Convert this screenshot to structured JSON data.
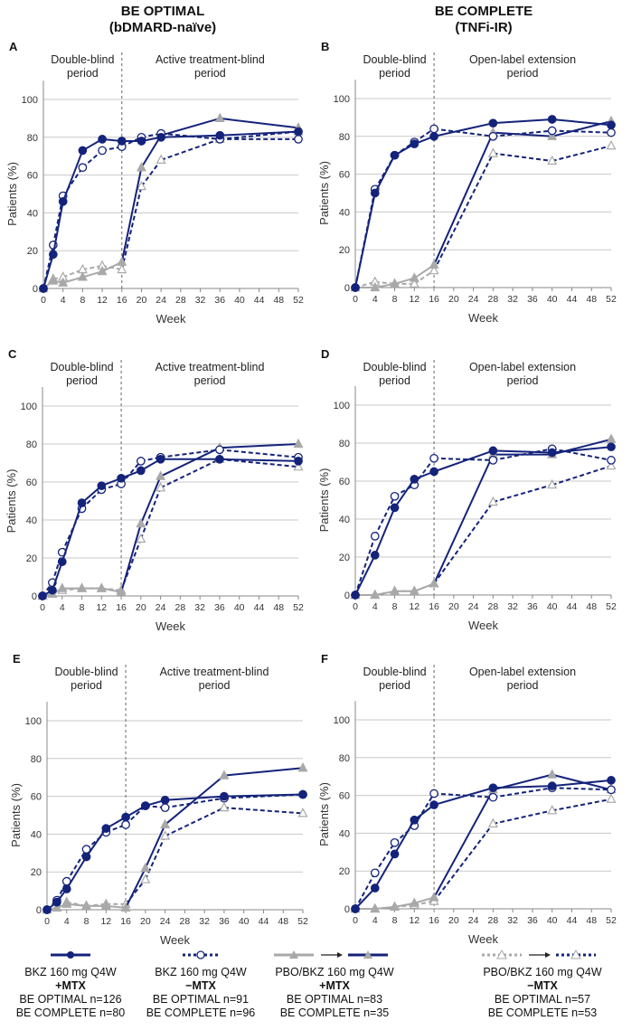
{
  "headers": [
    {
      "title": "BE OPTIMAL",
      "subtitle": "(bDMARD-naïve)"
    },
    {
      "title": "BE COMPLETE",
      "subtitle": "(TNFi-IR)"
    }
  ],
  "colors": {
    "bkz": "#14237a",
    "placebo": "#a9a9a9",
    "grid": "#c8c8c8"
  },
  "chart_data": [
    {
      "type": "line",
      "panel": "A",
      "study": "BE OPTIMAL",
      "xlabel": "Week",
      "ylabel": "Patients (%)",
      "ylim": [
        0,
        110
      ],
      "yticks": [
        0,
        20,
        40,
        60,
        80,
        100
      ],
      "xticks": [
        0,
        4,
        8,
        12,
        16,
        20,
        24,
        28,
        32,
        36,
        40,
        44,
        48,
        52
      ],
      "switch_week": 16,
      "period_labels": [
        [
          "Double-blind",
          "period"
        ],
        [
          "Active treatment-blind",
          "period"
        ]
      ],
      "x": [
        0,
        2,
        4,
        8,
        12,
        16,
        20,
        24,
        36,
        52
      ],
      "series": [
        {
          "name": "BKZ 160 mg Q4W +MTX",
          "values": [
            0,
            18,
            46,
            73,
            79,
            78,
            78,
            80,
            81,
            83
          ]
        },
        {
          "name": "BKZ 160 mg Q4W −MTX",
          "values": [
            0,
            23,
            49,
            64,
            73,
            75,
            80,
            82,
            79,
            79
          ]
        },
        {
          "name": "PBO/BKZ 160 mg Q4W +MTX",
          "values": [
            0,
            4,
            3,
            6,
            9,
            14,
            64,
            81,
            90,
            85
          ]
        },
        {
          "name": "PBO/BKZ 160 mg Q4W −MTX",
          "values": [
            0,
            5,
            6,
            10,
            12,
            10,
            54,
            68,
            79,
            83
          ]
        }
      ]
    },
    {
      "type": "line",
      "panel": "B",
      "study": "BE COMPLETE",
      "xlabel": "Week",
      "ylabel": "Patients (%)",
      "ylim": [
        0,
        110
      ],
      "yticks": [
        0,
        20,
        40,
        60,
        80,
        100
      ],
      "xticks": [
        0,
        4,
        8,
        12,
        16,
        20,
        24,
        28,
        32,
        36,
        40,
        44,
        48,
        52
      ],
      "switch_week": 16,
      "period_labels": [
        [
          "Double-blind",
          "period"
        ],
        [
          "Open-label  extension",
          "period"
        ]
      ],
      "x": [
        0,
        4,
        8,
        12,
        16,
        28,
        40,
        52
      ],
      "series": [
        {
          "name": "BKZ 160 mg Q4W +MTX",
          "values": [
            0,
            50,
            70,
            76,
            80,
            87,
            89,
            86
          ]
        },
        {
          "name": "BKZ 160 mg Q4W −MTX",
          "values": [
            0,
            52,
            70,
            77,
            84,
            80,
            83,
            82
          ]
        },
        {
          "name": "PBO/BKZ 160 mg Q4W +MTX",
          "values": [
            0,
            0,
            2,
            5,
            12,
            82,
            80,
            88
          ]
        },
        {
          "name": "PBO/BKZ 160 mg Q4W −MTX",
          "values": [
            0,
            3,
            2,
            2,
            9,
            71,
            67,
            75
          ]
        }
      ]
    },
    {
      "type": "line",
      "panel": "C",
      "study": "BE OPTIMAL",
      "xlabel": "Week",
      "ylabel": "Patients (%)",
      "ylim": [
        0,
        110
      ],
      "yticks": [
        0,
        20,
        40,
        60,
        80,
        100
      ],
      "xticks": [
        0,
        4,
        8,
        12,
        16,
        20,
        24,
        28,
        32,
        36,
        40,
        44,
        48,
        52
      ],
      "switch_week": 16,
      "period_labels": [
        [
          "Double-blind",
          "period"
        ],
        [
          "Active treatment-blind",
          "period"
        ]
      ],
      "x": [
        0,
        2,
        4,
        8,
        12,
        16,
        20,
        24,
        36,
        52
      ],
      "series": [
        {
          "name": "BKZ 160 mg Q4W +MTX",
          "values": [
            0,
            3,
            18,
            49,
            58,
            62,
            66,
            72,
            72,
            71
          ]
        },
        {
          "name": "BKZ 160 mg Q4W −MTX",
          "values": [
            0,
            7,
            23,
            46,
            56,
            59,
            71,
            73,
            77,
            73
          ]
        },
        {
          "name": "PBO/BKZ 160 mg Q4W +MTX",
          "values": [
            0,
            1,
            4,
            4,
            4,
            2,
            38,
            63,
            78,
            80
          ]
        },
        {
          "name": "PBO/BKZ 160 mg Q4W −MTX",
          "values": [
            0,
            1,
            3,
            4,
            4,
            3,
            30,
            57,
            72,
            68
          ]
        }
      ]
    },
    {
      "type": "line",
      "panel": "D",
      "study": "BE COMPLETE",
      "xlabel": "Week",
      "ylabel": "Patients (%)",
      "ylim": [
        0,
        110
      ],
      "yticks": [
        0,
        20,
        40,
        60,
        80,
        100
      ],
      "xticks": [
        0,
        4,
        8,
        12,
        16,
        20,
        24,
        28,
        32,
        36,
        40,
        44,
        48,
        52
      ],
      "switch_week": 16,
      "period_labels": [
        [
          "Double-blind",
          "period"
        ],
        [
          "Open-label  extension",
          "period"
        ]
      ],
      "x": [
        0,
        4,
        8,
        12,
        16,
        28,
        40,
        52
      ],
      "series": [
        {
          "name": "BKZ 160 mg Q4W +MTX",
          "values": [
            0,
            21,
            46,
            61,
            65,
            76,
            75,
            78
          ]
        },
        {
          "name": "BKZ 160 mg Q4W −MTX",
          "values": [
            0,
            31,
            52,
            58,
            72,
            71,
            77,
            71
          ]
        },
        {
          "name": "PBO/BKZ 160 mg Q4W +MTX",
          "values": [
            0,
            0,
            2,
            2,
            6,
            74,
            74,
            82
          ]
        },
        {
          "name": "PBO/BKZ 160 mg Q4W −MTX",
          "values": [
            0,
            0,
            2,
            2,
            6,
            49,
            58,
            68
          ]
        }
      ]
    },
    {
      "type": "line",
      "panel": "E",
      "study": "BE OPTIMAL",
      "xlabel": "Week",
      "ylabel": "Patients (%)",
      "ylim": [
        0,
        110
      ],
      "yticks": [
        0,
        20,
        40,
        60,
        80,
        100
      ],
      "xticks": [
        0,
        4,
        8,
        12,
        16,
        20,
        24,
        28,
        32,
        36,
        40,
        44,
        48,
        52
      ],
      "switch_week": 16,
      "period_labels": [
        [
          "Double-blind",
          "period"
        ],
        [
          "Active treatment-blind",
          "period"
        ]
      ],
      "x": [
        0,
        2,
        4,
        8,
        12,
        16,
        20,
        24,
        36,
        52
      ],
      "series": [
        {
          "name": "BKZ 160 mg Q4W +MTX",
          "values": [
            0,
            4,
            11,
            28,
            43,
            49,
            55,
            58,
            60,
            61
          ]
        },
        {
          "name": "BKZ 160 mg Q4W −MTX",
          "values": [
            0,
            5,
            15,
            32,
            41,
            45,
            55,
            54,
            59,
            61
          ]
        },
        {
          "name": "PBO/BKZ 160 mg Q4W +MTX",
          "values": [
            0,
            1,
            3,
            2,
            2,
            1,
            22,
            45,
            71,
            75
          ]
        },
        {
          "name": "PBO/BKZ 160 mg Q4W −MTX",
          "values": [
            0,
            1,
            4,
            2,
            3,
            3,
            16,
            39,
            54,
            51
          ]
        }
      ]
    },
    {
      "type": "line",
      "panel": "F",
      "study": "BE COMPLETE",
      "xlabel": "Week",
      "ylabel": "Patients (%)",
      "ylim": [
        0,
        110
      ],
      "yticks": [
        0,
        20,
        40,
        60,
        80,
        100
      ],
      "xticks": [
        0,
        4,
        8,
        12,
        16,
        20,
        24,
        28,
        32,
        36,
        40,
        44,
        48,
        52
      ],
      "switch_week": 16,
      "period_labels": [
        [
          "Double-blind",
          "period"
        ],
        [
          "Open-label  extension",
          "period"
        ]
      ],
      "x": [
        0,
        4,
        8,
        12,
        16,
        28,
        40,
        52
      ],
      "series": [
        {
          "name": "BKZ 160 mg Q4W +MTX",
          "values": [
            0,
            11,
            29,
            47,
            55,
            64,
            65,
            68
          ]
        },
        {
          "name": "BKZ 160 mg Q4W −MTX",
          "values": [
            0,
            19,
            35,
            44,
            61,
            59,
            64,
            63
          ]
        },
        {
          "name": "PBO/BKZ 160 mg Q4W +MTX",
          "values": [
            0,
            0,
            1,
            3,
            6,
            63,
            71,
            63
          ]
        },
        {
          "name": "PBO/BKZ 160 mg Q4W −MTX",
          "values": [
            0,
            0,
            1,
            2,
            4,
            45,
            52,
            58
          ]
        }
      ]
    }
  ],
  "legend": [
    {
      "line1": "BKZ 160 mg Q4W",
      "line2": "+MTX",
      "line3": "BE OPTIMAL  n=126",
      "line4": "BE COMPLETE  n=80"
    },
    {
      "line1": "BKZ 160 mg Q4W",
      "line2": "−MTX",
      "line3": "BE OPTIMAL  n=91",
      "line4": "BE COMPLETE  n=96"
    },
    {
      "line1": "PBO/BKZ 160 mg Q4W",
      "line2": "+MTX",
      "line3": "BE OPTIMAL  n=83",
      "line4": "BE COMPLETE  n=35"
    },
    {
      "line1": "PBO/BKZ 160 mg Q4W",
      "line2": "−MTX",
      "line3": "BE OPTIMAL  n=57",
      "line4": "BE COMPLETE  n=53"
    }
  ]
}
